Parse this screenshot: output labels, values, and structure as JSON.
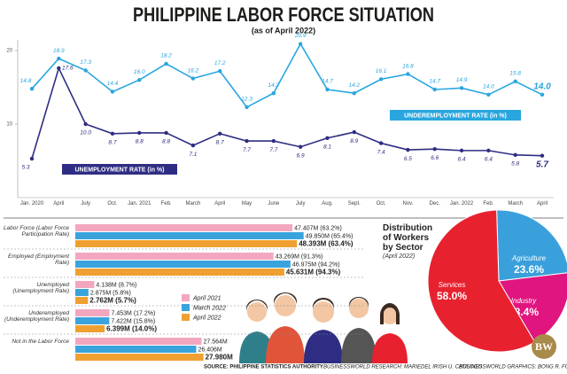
{
  "title": "PHILIPPINE LABOR FORCE SITUATION",
  "subtitle": "(as of April 2022)",
  "chart_data": [
    {
      "type": "line",
      "categories": [
        "Jan. 2020",
        "April",
        "July",
        "Oct.",
        "Jan. 2021",
        "Feb.",
        "March",
        "April",
        "May",
        "June",
        "July",
        "Aug.",
        "Sept.",
        "Oct.",
        "Nov.",
        "Dec.",
        "Jan. 2022",
        "Feb.",
        "March",
        "April"
      ],
      "series": [
        {
          "name": "UNDEREMPLOYMENT RATE (in %)",
          "color": "#29a6df",
          "values": [
            14.8,
            18.9,
            17.3,
            14.4,
            16.0,
            18.2,
            16.2,
            17.2,
            12.3,
            14.2,
            20.9,
            14.7,
            14.2,
            16.1,
            16.8,
            14.7,
            14.9,
            14.0,
            15.8,
            14.0
          ],
          "value_labels": [
            "14.8",
            "18.9",
            "17.3",
            "14.4",
            "16.0",
            "18.2",
            "16.2",
            "17.2",
            "12.3",
            "14.2",
            "20.9",
            "14.7",
            "14.2",
            "16.1",
            "16.8",
            "14.7",
            "14.9",
            "14.0",
            "15.8",
            "14.0"
          ]
        },
        {
          "name": "UNEMPLOYMENT RATE (in %)",
          "color": "#2e2d83",
          "values": [
            5.3,
            17.6,
            10.0,
            8.7,
            8.8,
            8.8,
            7.1,
            8.7,
            7.7,
            7.7,
            6.9,
            8.1,
            8.9,
            7.4,
            6.5,
            6.6,
            6.4,
            6.4,
            5.8,
            5.7
          ],
          "value_labels": [
            "5.3",
            "17.6",
            "10.0",
            "8.7",
            "8.8",
            "8.8",
            "7.1",
            "8.7",
            "7.7",
            "7.7",
            "6.9",
            "8.1",
            "8.9",
            "7.4",
            "6.5",
            "6.6",
            "6.4",
            "6.4",
            "5.8",
            "5.7"
          ]
        }
      ],
      "ylim": [
        0,
        22
      ],
      "yticks": [
        10,
        20
      ],
      "grid": false
    },
    {
      "type": "bar",
      "orientation": "horizontal",
      "categories": [
        "Labor Force (Labor Force Participation Rate)",
        "Employed (Employment Rate)",
        "Unemployed (Unemployment Rate)",
        "Underemployed (Underemployment Rate)",
        "Not in the Labor Force"
      ],
      "series": [
        {
          "name": "April 2021",
          "color": "#f2a7bf",
          "values": [
            47.407,
            43.269,
            4.138,
            7.453,
            27.564
          ],
          "value_labels": [
            "47.407M (63.2%)",
            "43.269M (91.3%)",
            "4.138M (8.7%)",
            "7.453M (17.2%)",
            "27.564M"
          ]
        },
        {
          "name": "March 2022",
          "color": "#3ba3dc",
          "values": [
            49.85,
            46.975,
            2.875,
            7.422,
            26.406
          ],
          "value_labels": [
            "49.850M (65.4%)",
            "46.975M (94.2%)",
            "2.875M (5.8%)",
            "7.422M (15.8%)",
            "26.406M"
          ]
        },
        {
          "name": "April 2022",
          "color": "#f0a030",
          "values": [
            48.393,
            45.631,
            2.762,
            6.399,
            27.98
          ],
          "value_labels": [
            "48.393M (63.4%)",
            "45.631M (94.3%)",
            "2.762M (5.7%)",
            "6.399M (14.0%)",
            "27.980M"
          ]
        }
      ],
      "legend": "center"
    },
    {
      "type": "pie",
      "title": "Distribution of Workers by Sector",
      "subtitle": "(April 2022)",
      "categories": [
        "Agriculture",
        "Industry",
        "Services"
      ],
      "values": [
        23.6,
        18.4,
        58.0
      ],
      "value_labels": [
        "23.6%",
        "18.4%",
        "58.0%"
      ],
      "colors": [
        "#3aa0db",
        "#e0157f",
        "#e8212f"
      ]
    }
  ],
  "footer": {
    "source": "SOURCE: PHILIPPINE STATISTICS AUTHORITY",
    "research": "BUSINESSWORLD RESEARCH: MARIEDEL IRISH U. CATILOGO",
    "graphics": "BUSINESSWORLD GRAPHICS: BONG R. FORTIN",
    "logo": "BW"
  }
}
